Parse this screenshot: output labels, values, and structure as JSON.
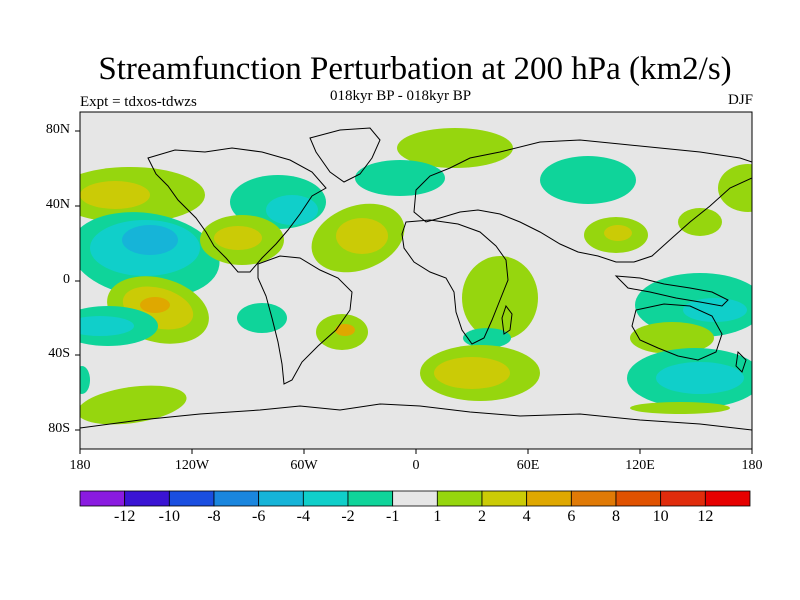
{
  "title": "Streamfunction Perturbation at 200 hPa (km2/s)",
  "subtitle": "018kyr BP - 018kyr BP",
  "left_label": "Expt = tdxos-tdwzs",
  "right_label": "DJF",
  "lat_labels": [
    "80N",
    "40N",
    "0",
    "40S",
    "80S"
  ],
  "lon_labels": [
    "180",
    "120W",
    "60W",
    "0",
    "60E",
    "120E",
    "180"
  ],
  "colorbar": {
    "labels": [
      "-12",
      "-10",
      "-8",
      "-6",
      "-4",
      "-2",
      "-1",
      "1",
      "2",
      "4",
      "6",
      "8",
      "10",
      "12"
    ],
    "colors": [
      "#8a1be0",
      "#3a14d4",
      "#1a4ee0",
      "#1a86de",
      "#16b4d8",
      "#10cfca",
      "#0fd49a",
      "#e6e6e6",
      "#96d60e",
      "#cbcb06",
      "#dfa800",
      "#e07a06",
      "#e05200",
      "#e02c0c",
      "#e60000"
    ]
  },
  "map": {
    "background": "#e6e6e6",
    "region_colors": {
      "pos1": "#96d60e",
      "pos2": "#cbcb06",
      "pos3": "#dfa800",
      "neg1": "#0fd49a",
      "neg2": "#10cfca",
      "neg3": "#16b4d8"
    }
  }
}
